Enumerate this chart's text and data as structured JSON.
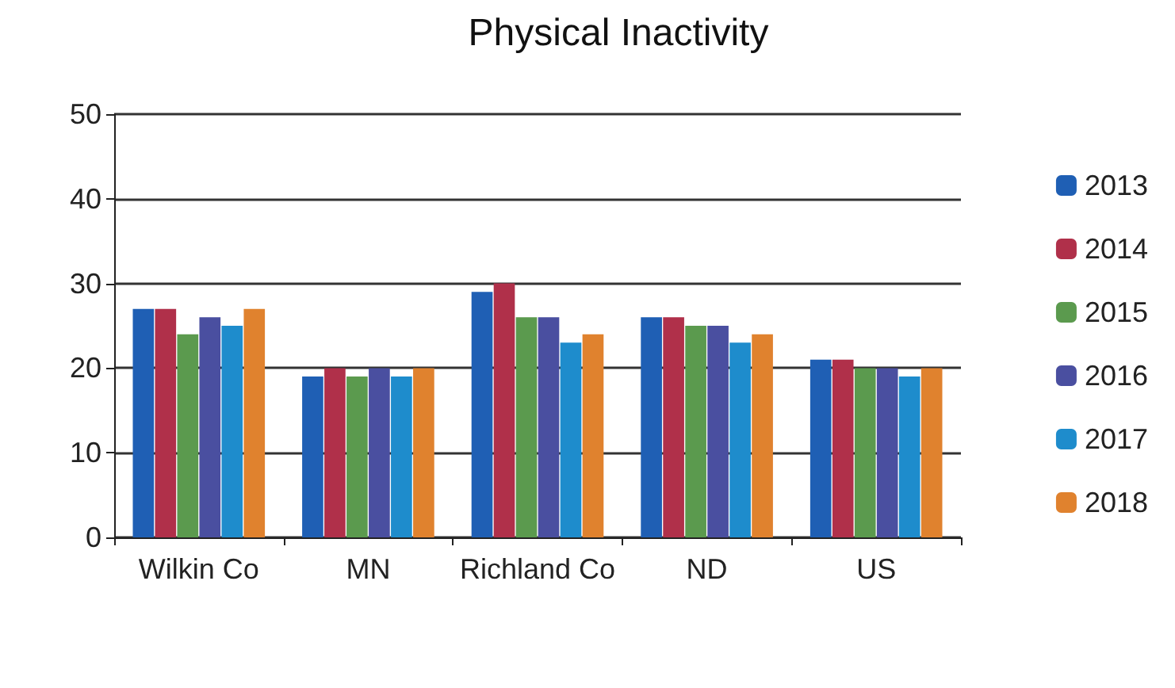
{
  "chart_data": {
    "type": "bar",
    "title": "Physical Inactivity",
    "categories": [
      "Wilkin Co",
      "MN",
      "Richland Co",
      "ND",
      "US"
    ],
    "series": [
      {
        "name": "2013",
        "color": "#1f5fb4",
        "values": [
          27,
          19,
          29,
          26,
          21
        ]
      },
      {
        "name": "2014",
        "color": "#b0304a",
        "values": [
          27,
          20,
          30,
          26,
          21
        ]
      },
      {
        "name": "2015",
        "color": "#5b9a4e",
        "values": [
          24,
          19,
          26,
          25,
          20
        ]
      },
      {
        "name": "2016",
        "color": "#4a4fa0",
        "values": [
          26,
          20,
          26,
          25,
          20
        ]
      },
      {
        "name": "2017",
        "color": "#1e8ccc",
        "values": [
          25,
          19,
          23,
          23,
          19
        ]
      },
      {
        "name": "2018",
        "color": "#e0822e",
        "values": [
          27,
          20,
          24,
          24,
          20
        ]
      }
    ],
    "ylim": [
      0,
      50
    ],
    "yticks": [
      0,
      10,
      20,
      30,
      40,
      50
    ],
    "grid": "y",
    "legend": "right"
  }
}
